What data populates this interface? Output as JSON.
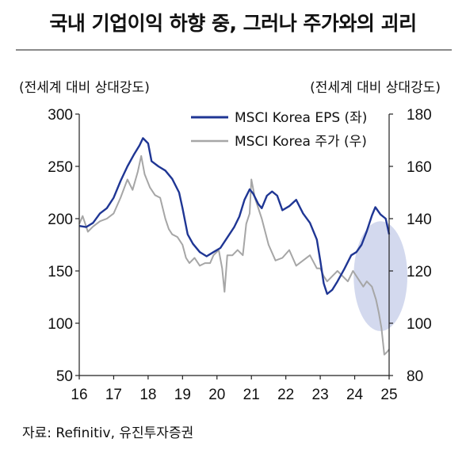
{
  "title": "국내 기업이익 하향 중, 그러나 주가와의 괴리",
  "left_axis_note": "(전세계 대비 상대강도)",
  "right_axis_note": "(전세계 대비 상대강도)",
  "source": "자료: Refinitiv, 유진투자증권",
  "colors": {
    "eps": "#1f3694",
    "price": "#a6a6a6",
    "highlight": "#c8d0ea"
  },
  "chart_data": {
    "type": "line",
    "x_ticks": [
      "16",
      "17",
      "18",
      "19",
      "20",
      "21",
      "22",
      "23",
      "24",
      "25"
    ],
    "x_range": [
      16,
      25
    ],
    "y_left": {
      "ticks": [
        300,
        250,
        200,
        150,
        100,
        50
      ],
      "range": [
        50,
        300
      ]
    },
    "y_right": {
      "ticks": [
        180,
        160,
        140,
        120,
        100,
        80
      ],
      "range": [
        80,
        180
      ]
    },
    "grid": false,
    "legend_position": "top-right",
    "highlight": {
      "shape": "ellipse",
      "x": 24.75,
      "y_right": 118,
      "rx_years": 0.78,
      "ry_right": 21
    },
    "series": [
      {
        "name": "MSCI Korea EPS (좌)",
        "axis": "left",
        "points": [
          [
            16.0,
            193
          ],
          [
            16.2,
            192
          ],
          [
            16.4,
            196
          ],
          [
            16.6,
            205
          ],
          [
            16.8,
            210
          ],
          [
            17.0,
            220
          ],
          [
            17.2,
            236
          ],
          [
            17.4,
            250
          ],
          [
            17.6,
            262
          ],
          [
            17.75,
            270
          ],
          [
            17.85,
            277
          ],
          [
            18.0,
            272
          ],
          [
            18.1,
            255
          ],
          [
            18.3,
            250
          ],
          [
            18.5,
            246
          ],
          [
            18.7,
            238
          ],
          [
            18.9,
            225
          ],
          [
            19.0,
            210
          ],
          [
            19.15,
            185
          ],
          [
            19.3,
            176
          ],
          [
            19.5,
            168
          ],
          [
            19.7,
            164
          ],
          [
            19.9,
            168
          ],
          [
            20.1,
            172
          ],
          [
            20.3,
            182
          ],
          [
            20.5,
            192
          ],
          [
            20.65,
            202
          ],
          [
            20.8,
            218
          ],
          [
            20.95,
            228
          ],
          [
            21.05,
            224
          ],
          [
            21.2,
            214
          ],
          [
            21.3,
            210
          ],
          [
            21.45,
            222
          ],
          [
            21.6,
            226
          ],
          [
            21.75,
            222
          ],
          [
            21.9,
            208
          ],
          [
            22.1,
            212
          ],
          [
            22.3,
            218
          ],
          [
            22.5,
            205
          ],
          [
            22.7,
            196
          ],
          [
            22.9,
            180
          ],
          [
            23.0,
            160
          ],
          [
            23.1,
            138
          ],
          [
            23.2,
            128
          ],
          [
            23.35,
            132
          ],
          [
            23.5,
            140
          ],
          [
            23.7,
            152
          ],
          [
            23.9,
            165
          ],
          [
            24.05,
            168
          ],
          [
            24.2,
            175
          ],
          [
            24.35,
            188
          ],
          [
            24.5,
            203
          ],
          [
            24.6,
            211
          ],
          [
            24.75,
            204
          ],
          [
            24.9,
            200
          ],
          [
            25.0,
            185
          ]
        ]
      },
      {
        "name": "MSCI Korea 주가 (우)",
        "axis": "right",
        "points": [
          [
            16.0,
            138
          ],
          [
            16.1,
            141
          ],
          [
            16.25,
            135
          ],
          [
            16.4,
            137
          ],
          [
            16.6,
            139
          ],
          [
            16.8,
            140
          ],
          [
            17.0,
            142
          ],
          [
            17.2,
            148
          ],
          [
            17.4,
            155
          ],
          [
            17.55,
            151
          ],
          [
            17.7,
            158
          ],
          [
            17.8,
            164
          ],
          [
            17.9,
            157
          ],
          [
            18.05,
            152
          ],
          [
            18.2,
            149
          ],
          [
            18.35,
            148
          ],
          [
            18.5,
            140
          ],
          [
            18.6,
            136
          ],
          [
            18.7,
            134
          ],
          [
            18.85,
            133
          ],
          [
            19.0,
            130
          ],
          [
            19.1,
            125
          ],
          [
            19.2,
            123
          ],
          [
            19.35,
            125
          ],
          [
            19.5,
            122
          ],
          [
            19.65,
            123
          ],
          [
            19.8,
            123
          ],
          [
            19.9,
            126
          ],
          [
            20.05,
            128
          ],
          [
            20.15,
            121
          ],
          [
            20.22,
            112
          ],
          [
            20.3,
            126
          ],
          [
            20.45,
            126
          ],
          [
            20.6,
            128
          ],
          [
            20.75,
            126
          ],
          [
            20.85,
            138
          ],
          [
            20.95,
            142
          ],
          [
            21.0,
            155
          ],
          [
            21.1,
            148
          ],
          [
            21.3,
            140
          ],
          [
            21.5,
            130
          ],
          [
            21.7,
            124
          ],
          [
            21.9,
            125
          ],
          [
            22.1,
            128
          ],
          [
            22.3,
            122
          ],
          [
            22.5,
            124
          ],
          [
            22.7,
            126
          ],
          [
            22.9,
            121
          ],
          [
            23.0,
            121
          ],
          [
            23.1,
            118
          ],
          [
            23.2,
            116
          ],
          [
            23.35,
            118
          ],
          [
            23.5,
            120
          ],
          [
            23.65,
            118
          ],
          [
            23.8,
            116
          ],
          [
            23.95,
            120
          ],
          [
            24.1,
            117
          ],
          [
            24.25,
            114
          ],
          [
            24.35,
            116
          ],
          [
            24.5,
            114
          ],
          [
            24.62,
            109
          ],
          [
            24.7,
            104
          ],
          [
            24.78,
            98
          ],
          [
            24.86,
            88
          ],
          [
            24.94,
            89
          ],
          [
            25.0,
            90
          ]
        ]
      }
    ]
  }
}
